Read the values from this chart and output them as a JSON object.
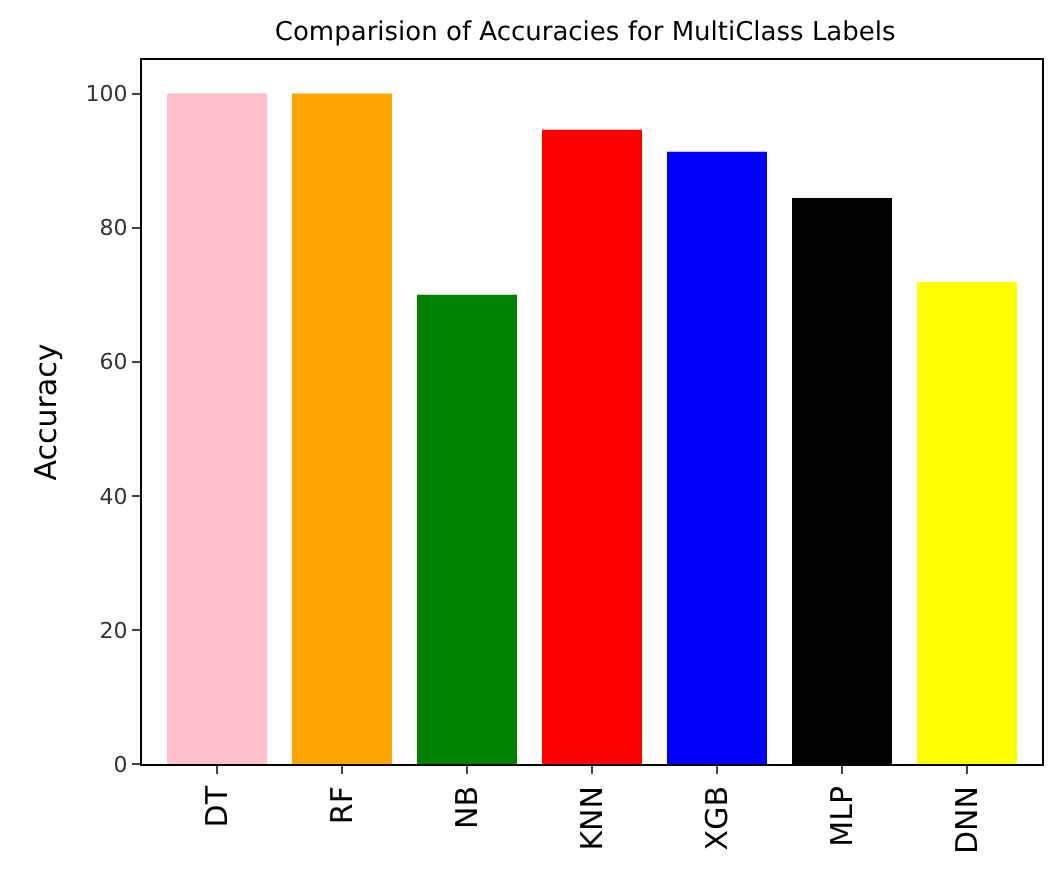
{
  "chart_data": {
    "type": "bar",
    "title": "Comparision of Accuracies for MultiClass Labels",
    "ylabel": "Accuracy",
    "categories": [
      "DT",
      "RF",
      "NB",
      "KNN",
      "XGB",
      "MLP",
      "DNN"
    ],
    "values": [
      100,
      100,
      70,
      94.6,
      91.3,
      84.4,
      71.9
    ],
    "colors": [
      "#ffc0cb",
      "#ffa500",
      "#008000",
      "#ff0000",
      "#0000ff",
      "#000000",
      "#ffff00"
    ],
    "ylim": [
      0,
      105
    ],
    "yticks": [
      0,
      20,
      40,
      60,
      80,
      100
    ],
    "grid": false
  }
}
